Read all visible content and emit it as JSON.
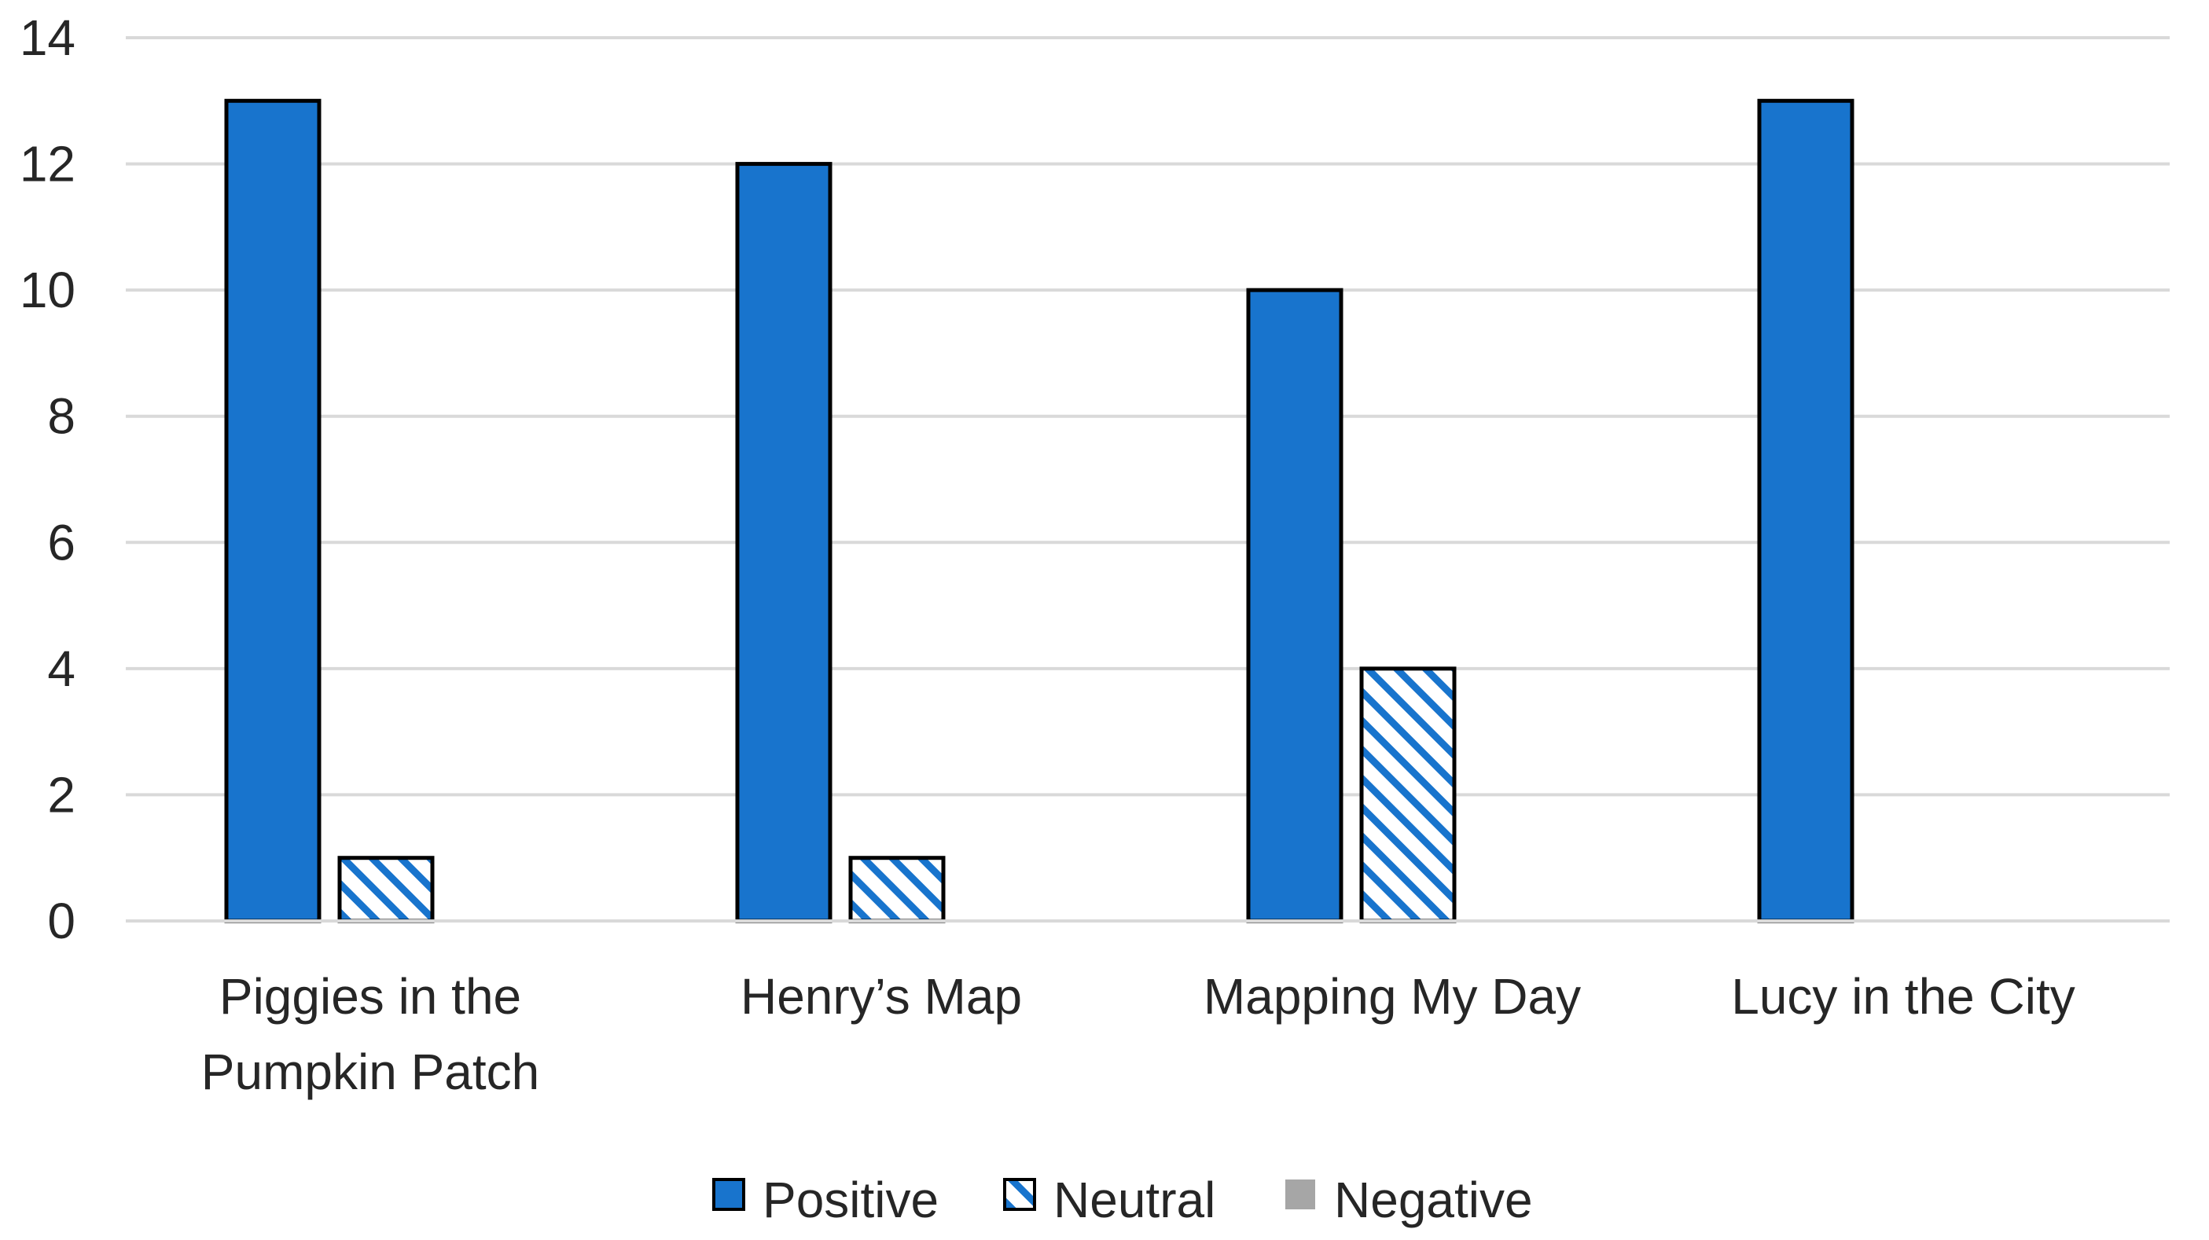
{
  "chart_data": {
    "type": "bar",
    "categories": [
      [
        "Piggies in the",
        "Pumpkin Patch"
      ],
      [
        "Henry’s Map"
      ],
      [
        "Mapping My Day"
      ],
      [
        "Lucy  in the City"
      ]
    ],
    "series": [
      {
        "name": "Positive",
        "values": [
          13,
          12,
          10,
          13
        ],
        "color": "#1874cd",
        "pattern": "solid"
      },
      {
        "name": "Neutral",
        "values": [
          1,
          1,
          4,
          0
        ],
        "color": "#1874cd",
        "pattern": "hatch"
      },
      {
        "name": "Negative",
        "values": [
          0,
          0,
          0,
          0
        ],
        "color": "#a6a6a6",
        "pattern": "solid"
      }
    ],
    "ylim": [
      0,
      14
    ],
    "yticks": [
      0,
      2,
      4,
      6,
      8,
      10,
      12,
      14
    ],
    "grid": true,
    "legend_position": "bottom-center"
  }
}
